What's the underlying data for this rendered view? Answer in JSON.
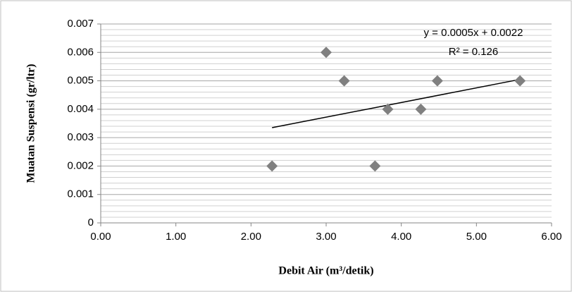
{
  "chart_data": {
    "type": "scatter",
    "x_label": "Debit Air (m³/detik)",
    "y_label": "Muatan Suspensi (gr/ltr)",
    "x": [
      2.28,
      3.0,
      3.24,
      3.65,
      3.82,
      4.26,
      4.48,
      5.58
    ],
    "values": [
      0.002,
      0.006,
      0.005,
      0.002,
      0.004,
      0.004,
      0.005,
      0.005
    ],
    "color": "#808080",
    "xlim": [
      0,
      6
    ],
    "ylim": [
      0,
      0.007
    ],
    "xticks": [
      {
        "value": 0,
        "label": "0.00"
      },
      {
        "value": 1,
        "label": "1.00"
      },
      {
        "value": 2,
        "label": "2.00"
      },
      {
        "value": 3,
        "label": "3.00"
      },
      {
        "value": 4,
        "label": "4.00"
      },
      {
        "value": 5,
        "label": "5.00"
      },
      {
        "value": 6,
        "label": "6.00"
      }
    ],
    "yticks": [
      0,
      0.001,
      0.002,
      0.003,
      0.004,
      0.005,
      0.006,
      0.007
    ],
    "yminorticks": [
      0.0002,
      0.0004,
      0.0006,
      0.0008,
      0.0012,
      0.0014,
      0.0016,
      0.0018,
      0.0022,
      0.0024,
      0.0026,
      0.0028,
      0.0032,
      0.0034,
      0.0036,
      0.0038,
      0.0042,
      0.0044,
      0.0046,
      0.0048,
      0.0052,
      0.0054,
      0.0056,
      0.0058,
      0.0062,
      0.0064,
      0.0066,
      0.0068
    ],
    "grid": true,
    "trendline": {
      "x": [
        2.28,
        5.58
      ],
      "values": [
        0.00335,
        0.00505
      ],
      "color": "#000000"
    },
    "annotations": [
      "y = 0.0005x + 0.0022",
      "R² = 0.126"
    ]
  }
}
